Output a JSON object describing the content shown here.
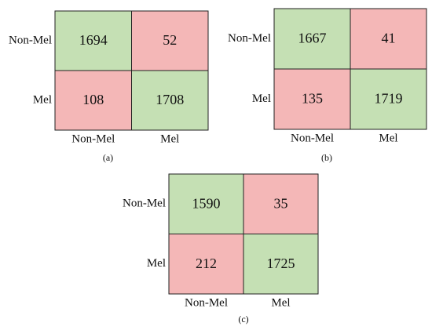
{
  "matrices": [
    {
      "caption": "(a)",
      "row_labels": [
        "Non-Mel",
        "Mel"
      ],
      "col_labels": [
        "Non-Mel",
        "Mel"
      ],
      "cells": [
        [
          1694,
          52
        ],
        [
          108,
          1708
        ]
      ]
    },
    {
      "caption": "(b)",
      "row_labels": [
        "Non-Mel",
        "Mel"
      ],
      "col_labels": [
        "Non-Mel",
        "Mel"
      ],
      "cells": [
        [
          1667,
          41
        ],
        [
          135,
          1719
        ]
      ]
    },
    {
      "caption": "(c)",
      "row_labels": [
        "Non-Mel",
        "Mel"
      ],
      "col_labels": [
        "Non-Mel",
        "Mel"
      ],
      "cells": [
        [
          1590,
          35
        ],
        [
          212,
          1725
        ]
      ]
    }
  ]
}
